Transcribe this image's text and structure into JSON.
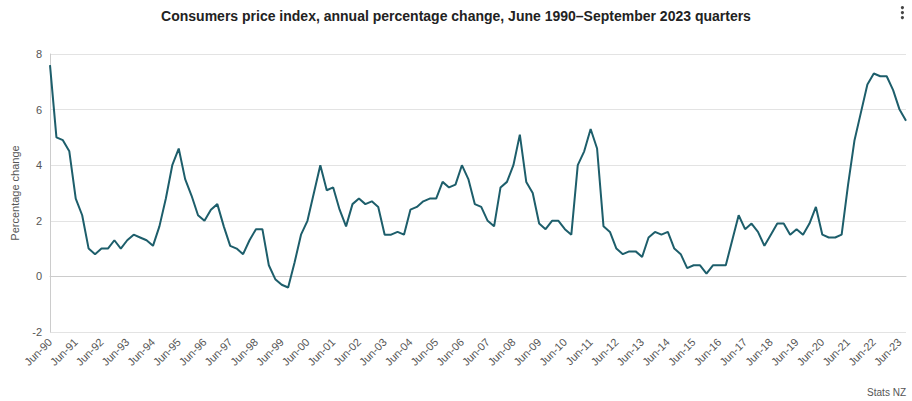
{
  "chart_data": {
    "type": "line",
    "title": "Consumers price index, annual percentage change, June 1990–September 2023 quarters",
    "y_label": "Percentage change",
    "source": "Stats NZ",
    "color": "#1d5e6b",
    "grid": true,
    "categories": [
      "Jun-90",
      null,
      null,
      null,
      "Jun-91",
      null,
      null,
      null,
      "Jun-92",
      null,
      null,
      null,
      "Jun-93",
      null,
      null,
      null,
      "Jun-94",
      null,
      null,
      null,
      "Jun-95",
      null,
      null,
      null,
      "Jun-96",
      null,
      null,
      null,
      "Jun-97",
      null,
      null,
      null,
      "Jun-98",
      null,
      null,
      null,
      "Jun-99",
      null,
      null,
      null,
      "Jun-00",
      null,
      null,
      null,
      "Jun-01",
      null,
      null,
      null,
      "Jun-02",
      null,
      null,
      null,
      "Jun-03",
      null,
      null,
      null,
      "Jun-04",
      null,
      null,
      null,
      "Jun-05",
      null,
      null,
      null,
      "Jun-06",
      null,
      null,
      null,
      "Jun-07",
      null,
      null,
      null,
      "Jun-08",
      null,
      null,
      null,
      "Jun-09",
      null,
      null,
      null,
      "Jun-10",
      null,
      null,
      null,
      "Jun-11",
      null,
      null,
      null,
      "Jun-12",
      null,
      null,
      null,
      "Jun-13",
      null,
      null,
      null,
      "Jun-14",
      null,
      null,
      null,
      "Jun-15",
      null,
      null,
      null,
      "Jun-16",
      null,
      null,
      null,
      "Jun-17",
      null,
      null,
      null,
      "Jun-18",
      null,
      null,
      null,
      "Jun-19",
      null,
      null,
      null,
      "Jun-20",
      null,
      null,
      null,
      "Jun-21",
      null,
      null,
      null,
      "Jun-22",
      null,
      null,
      null,
      "Jun-23",
      null
    ],
    "values": [
      7.6,
      5.0,
      4.9,
      4.5,
      2.8,
      2.2,
      1.0,
      0.8,
      1.0,
      1.0,
      1.3,
      1.0,
      1.3,
      1.5,
      1.4,
      1.3,
      1.1,
      1.8,
      2.8,
      4.0,
      4.6,
      3.5,
      2.9,
      2.2,
      2.0,
      2.4,
      2.6,
      1.8,
      1.1,
      1.0,
      0.8,
      1.3,
      1.7,
      1.7,
      0.4,
      -0.1,
      -0.3,
      -0.4,
      0.5,
      1.5,
      2.0,
      3.0,
      4.0,
      3.1,
      3.2,
      2.4,
      1.8,
      2.6,
      2.8,
      2.6,
      2.7,
      2.5,
      1.5,
      1.5,
      1.6,
      1.5,
      2.4,
      2.5,
      2.7,
      2.8,
      2.8,
      3.4,
      3.2,
      3.3,
      4.0,
      3.5,
      2.6,
      2.5,
      2.0,
      1.8,
      3.2,
      3.4,
      4.0,
      5.1,
      3.4,
      3.0,
      1.9,
      1.7,
      2.0,
      2.0,
      1.7,
      1.5,
      4.0,
      4.5,
      5.3,
      4.6,
      1.8,
      1.6,
      1.0,
      0.8,
      0.9,
      0.9,
      0.7,
      1.4,
      1.6,
      1.5,
      1.6,
      1.0,
      0.8,
      0.3,
      0.4,
      0.4,
      0.1,
      0.4,
      0.4,
      0.4,
      1.3,
      2.2,
      1.7,
      1.9,
      1.6,
      1.1,
      1.5,
      1.9,
      1.9,
      1.5,
      1.7,
      1.5,
      1.9,
      2.5,
      1.5,
      1.4,
      1.4,
      1.5,
      3.3,
      4.9,
      5.9,
      6.9,
      7.3,
      7.2,
      7.2,
      6.7,
      6.0,
      5.6
    ],
    "ylim": [
      -2,
      8
    ],
    "yticks": [
      -2,
      0,
      2,
      4,
      6,
      8
    ]
  }
}
